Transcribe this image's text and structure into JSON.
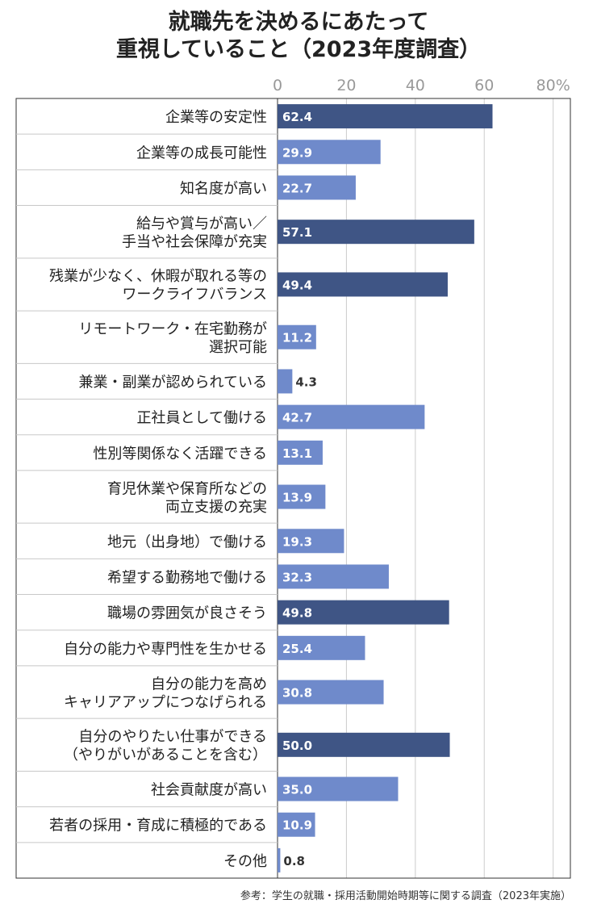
{
  "title_line1": "就職先を決めるにあたって",
  "title_line2": "重視していること（2023年度調査）",
  "source": "参考：学生の就職・採用活動開始時期等に関する調査（2023年実施）",
  "colors": {
    "highlight": "#3f5585",
    "normal": "#6f8acb",
    "grid": "#cccccc",
    "axis_text": "#999999"
  },
  "chart_data": {
    "type": "bar",
    "orientation": "horizontal",
    "title": "就職先を決めるにあたって重視していること（2023年度調査）",
    "xlim": [
      0,
      80
    ],
    "ticks": [
      "0",
      "20",
      "40",
      "60",
      "80%"
    ],
    "tick_values": [
      0,
      20,
      40,
      60,
      80
    ],
    "grid": true,
    "categories": [
      [
        "企業等の安定性"
      ],
      [
        "企業等の成長可能性"
      ],
      [
        "知名度が高い"
      ],
      [
        "給与や賞与が高い／",
        "手当や社会保障が充実"
      ],
      [
        "残業が少なく、休暇が取れる等の",
        "ワークライフバランス"
      ],
      [
        "リモートワーク・在宅勤務が",
        "選択可能"
      ],
      [
        "兼業・副業が認められている"
      ],
      [
        "正社員として働ける"
      ],
      [
        "性別等関係なく活躍できる"
      ],
      [
        "育児休業や保育所などの",
        "両立支援の充実"
      ],
      [
        "地元（出身地）で働ける"
      ],
      [
        "希望する勤務地で働ける"
      ],
      [
        "職場の雰囲気が良さそう"
      ],
      [
        "自分の能力や専門性を生かせる"
      ],
      [
        "自分の能力を高め",
        "キャリアアップにつなげられる"
      ],
      [
        "自分のやりたい仕事ができる",
        "（やりがいがあることを含む）"
      ],
      [
        "社会貢献度が高い"
      ],
      [
        "若者の採用・育成に積極的である"
      ],
      [
        "その他"
      ]
    ],
    "values": [
      62.4,
      29.9,
      22.7,
      57.1,
      49.4,
      11.2,
      4.3,
      42.7,
      13.1,
      13.9,
      19.3,
      32.3,
      49.8,
      25.4,
      30.8,
      50.0,
      35.0,
      10.9,
      0.8
    ],
    "value_labels": [
      "62.4",
      "29.9",
      "22.7",
      "57.1",
      "49.4",
      "11.2",
      "4.3",
      "42.7",
      "13.1",
      "13.9",
      "19.3",
      "32.3",
      "49.8",
      "25.4",
      "30.8",
      "50.0",
      "35.0",
      "10.9",
      "0.8"
    ],
    "highlighted": [
      true,
      false,
      false,
      true,
      true,
      false,
      false,
      false,
      false,
      false,
      false,
      false,
      true,
      false,
      false,
      true,
      false,
      false,
      false
    ]
  }
}
